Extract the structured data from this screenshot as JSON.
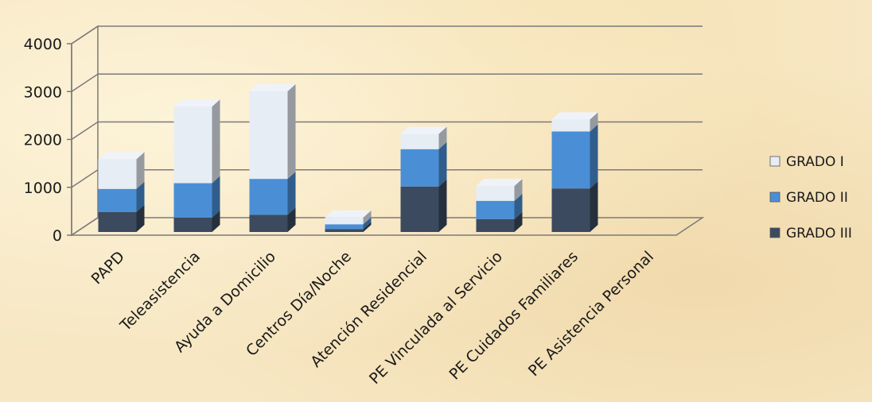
{
  "chart_data": {
    "type": "bar",
    "stacked": true,
    "three_d": true,
    "categories": [
      "PAPD",
      "Teleasistencia",
      "Ayuda a Domicilio",
      "Centros Día/Noche",
      "Atención Residencial",
      "PE Vinculada al Servicio",
      "PE Cuidados Familiares",
      "PE Asistencia Personal"
    ],
    "series": [
      {
        "name": "GRADO III",
        "color": "#3b4a5e",
        "values": [
          420,
          300,
          360,
          60,
          950,
          270,
          910,
          0
        ]
      },
      {
        "name": "GRADO II",
        "color": "#4a8fd6",
        "values": [
          480,
          720,
          750,
          100,
          780,
          380,
          1190,
          0
        ]
      },
      {
        "name": "GRADO I",
        "color": "#e6edf5",
        "values": [
          620,
          1600,
          1830,
          140,
          320,
          310,
          250,
          0
        ]
      }
    ],
    "ylim": [
      0,
      4000
    ],
    "yticks": [
      0,
      1000,
      2000,
      3000,
      4000
    ],
    "grid": true,
    "legend": "right",
    "legend_order": [
      "GRADO I",
      "GRADO II",
      "GRADO III"
    ]
  }
}
